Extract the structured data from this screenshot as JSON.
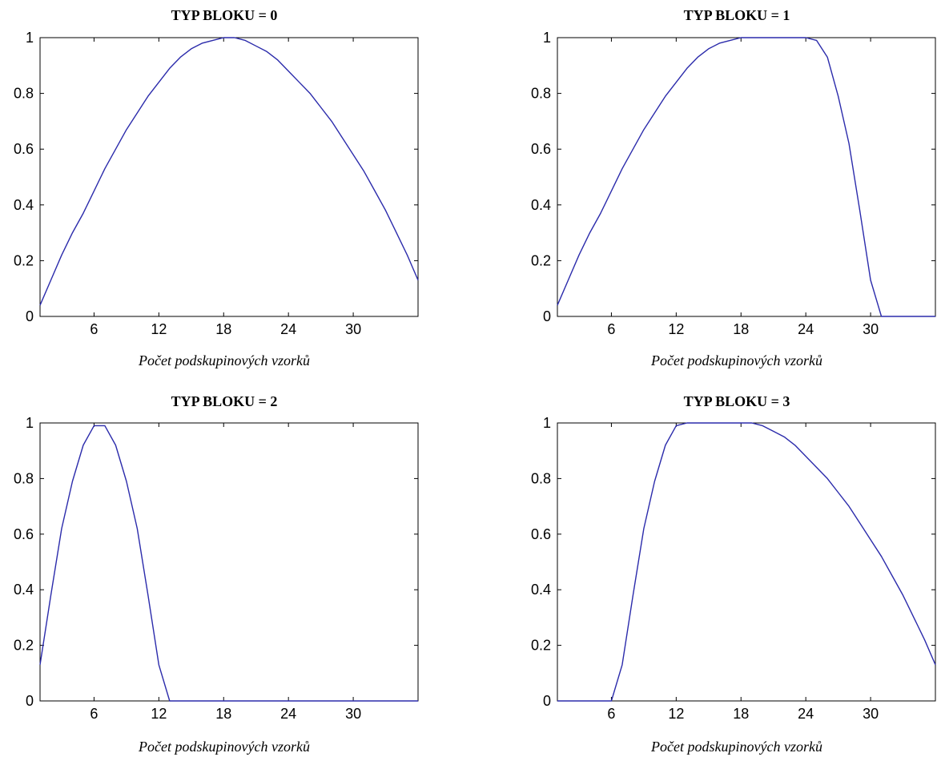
{
  "chart_data": [
    {
      "type": "line",
      "title": "TYP BLOKU = 0",
      "xlabel": "Počet podskupinových vzorků",
      "ylabel": "",
      "xlim": [
        1,
        36
      ],
      "ylim": [
        0,
        1
      ],
      "xticks": [
        6,
        12,
        18,
        24,
        30
      ],
      "yticks": [
        0,
        0.2,
        0.4,
        0.6,
        0.8,
        1
      ],
      "ytick_labels": [
        "0",
        "0.2",
        "0.4",
        "0.6",
        "0.8",
        "1"
      ],
      "grid": false,
      "series": [
        {
          "x": [
            1,
            2,
            3,
            4,
            5,
            6,
            7,
            8,
            9,
            10,
            11,
            12,
            13,
            14,
            15,
            16,
            17,
            18,
            19,
            20,
            21,
            22,
            23,
            24,
            25,
            26,
            27,
            28,
            29,
            30,
            31,
            32,
            33,
            34,
            35,
            36
          ],
          "y": [
            0.04,
            0.13,
            0.22,
            0.3,
            0.37,
            0.45,
            0.53,
            0.6,
            0.67,
            0.73,
            0.79,
            0.84,
            0.89,
            0.93,
            0.96,
            0.98,
            0.99,
            1.0,
            1.0,
            0.99,
            0.97,
            0.95,
            0.92,
            0.88,
            0.84,
            0.8,
            0.75,
            0.7,
            0.64,
            0.58,
            0.52,
            0.45,
            0.38,
            0.3,
            0.22,
            0.13
          ]
        }
      ]
    },
    {
      "type": "line",
      "title": "TYP BLOKU = 1",
      "xlabel": "Počet podskupinových vzorků",
      "ylabel": "",
      "xlim": [
        1,
        36
      ],
      "ylim": [
        0,
        1
      ],
      "xticks": [
        6,
        12,
        18,
        24,
        30
      ],
      "yticks": [
        0,
        0.2,
        0.4,
        0.6,
        0.8,
        1
      ],
      "ytick_labels": [
        "0",
        "0.2",
        "0.4",
        "0.6",
        "0.8",
        "1"
      ],
      "grid": false,
      "series": [
        {
          "x": [
            1,
            2,
            3,
            4,
            5,
            6,
            7,
            8,
            9,
            10,
            11,
            12,
            13,
            14,
            15,
            16,
            17,
            18,
            19,
            20,
            21,
            22,
            23,
            24,
            25,
            26,
            27,
            28,
            29,
            30,
            31,
            32,
            33,
            34,
            35,
            36
          ],
          "y": [
            0.04,
            0.13,
            0.22,
            0.3,
            0.37,
            0.45,
            0.53,
            0.6,
            0.67,
            0.73,
            0.79,
            0.84,
            0.89,
            0.93,
            0.96,
            0.98,
            0.99,
            1.0,
            1.0,
            1.0,
            1.0,
            1.0,
            1.0,
            1.0,
            0.99,
            0.93,
            0.79,
            0.62,
            0.38,
            0.13,
            0.0,
            0.0,
            0.0,
            0.0,
            0.0,
            0.0
          ]
        }
      ]
    },
    {
      "type": "line",
      "title": "TYP BLOKU = 2",
      "xlabel": "Počet podskupinových vzorků",
      "ylabel": "",
      "xlim": [
        1,
        36
      ],
      "ylim": [
        0,
        1
      ],
      "xticks": [
        6,
        12,
        18,
        24,
        30
      ],
      "yticks": [
        0,
        0.2,
        0.4,
        0.6,
        0.8,
        1
      ],
      "ytick_labels": [
        "0",
        "0.2",
        "0.4",
        "0.6",
        "0.8",
        "1"
      ],
      "grid": false,
      "series": [
        {
          "x": [
            1,
            2,
            3,
            4,
            5,
            6,
            7,
            8,
            9,
            10,
            11,
            12,
            13,
            14,
            15,
            16,
            17,
            18,
            19,
            20,
            21,
            22,
            23,
            24,
            25,
            26,
            27,
            28,
            29,
            30,
            31,
            32,
            33,
            34,
            35,
            36
          ],
          "y": [
            0.13,
            0.38,
            0.62,
            0.79,
            0.92,
            0.99,
            0.99,
            0.92,
            0.79,
            0.62,
            0.38,
            0.13,
            0.0,
            0.0,
            0.0,
            0.0,
            0.0,
            0.0,
            0.0,
            0.0,
            0.0,
            0.0,
            0.0,
            0.0,
            0.0,
            0.0,
            0.0,
            0.0,
            0.0,
            0.0,
            0.0,
            0.0,
            0.0,
            0.0,
            0.0,
            0.0
          ]
        }
      ]
    },
    {
      "type": "line",
      "title": "TYP BLOKU = 3",
      "xlabel": "Počet podskupinových vzorků",
      "ylabel": "",
      "xlim": [
        1,
        36
      ],
      "ylim": [
        0,
        1
      ],
      "xticks": [
        6,
        12,
        18,
        24,
        30
      ],
      "yticks": [
        0,
        0.2,
        0.4,
        0.6,
        0.8,
        1
      ],
      "ytick_labels": [
        "0",
        "0.2",
        "0.4",
        "0.6",
        "0.8",
        "1"
      ],
      "grid": false,
      "series": [
        {
          "x": [
            1,
            2,
            3,
            4,
            5,
            6,
            7,
            8,
            9,
            10,
            11,
            12,
            13,
            14,
            15,
            16,
            17,
            18,
            19,
            20,
            21,
            22,
            23,
            24,
            25,
            26,
            27,
            28,
            29,
            30,
            31,
            32,
            33,
            34,
            35,
            36
          ],
          "y": [
            0.0,
            0.0,
            0.0,
            0.0,
            0.0,
            0.0,
            0.13,
            0.38,
            0.62,
            0.79,
            0.92,
            0.99,
            1.0,
            1.0,
            1.0,
            1.0,
            1.0,
            1.0,
            1.0,
            0.99,
            0.97,
            0.95,
            0.92,
            0.88,
            0.84,
            0.8,
            0.75,
            0.7,
            0.64,
            0.58,
            0.52,
            0.45,
            0.38,
            0.3,
            0.22,
            0.13
          ]
        }
      ]
    }
  ],
  "colors": {
    "line": "#2b2bab",
    "axes": "#000000"
  }
}
